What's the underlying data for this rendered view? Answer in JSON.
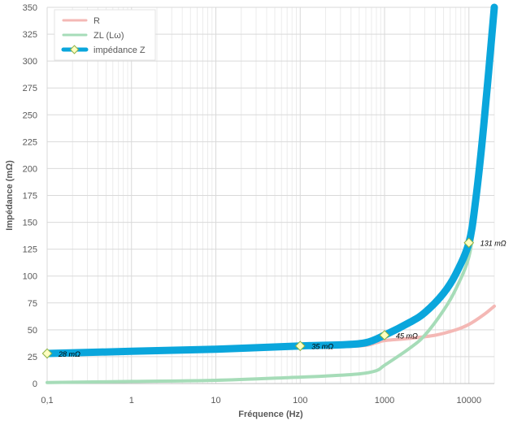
{
  "chart_data": {
    "type": "line",
    "title": "",
    "xlabel": "Fréquence (Hz)",
    "ylabel": "Impédance (mΩ)",
    "x_scale": "log",
    "xlim": [
      0.1,
      20000
    ],
    "ylim": [
      0,
      350
    ],
    "x_ticks": [
      0.1,
      1,
      10,
      100,
      1000,
      10000
    ],
    "x_tick_labels": [
      "0,1",
      "1",
      "10",
      "100",
      "1000",
      "10000"
    ],
    "y_ticks": [
      0,
      25,
      50,
      75,
      100,
      125,
      150,
      175,
      200,
      225,
      250,
      275,
      300,
      325,
      350
    ],
    "y_tick_labels": [
      "0",
      "25",
      "50",
      "75",
      "100",
      "125",
      "150",
      "175",
      "200",
      "225",
      "250",
      "275",
      "300",
      "325",
      "350"
    ],
    "grid": true,
    "legend_position": "top-left",
    "series": [
      {
        "name": "R",
        "color": "#f4b8b5",
        "points": [
          [
            0.1,
            28
          ],
          [
            1,
            30
          ],
          [
            10,
            32
          ],
          [
            100,
            34
          ],
          [
            500,
            35
          ],
          [
            800,
            38
          ],
          [
            1000,
            40
          ],
          [
            2000,
            42
          ],
          [
            4000,
            45
          ],
          [
            7000,
            50
          ],
          [
            10000,
            55
          ],
          [
            15000,
            64
          ],
          [
            20000,
            72
          ]
        ]
      },
      {
        "name": "ZL (Lω)",
        "color": "#a6dcb8",
        "points": [
          [
            0.1,
            1
          ],
          [
            1,
            2
          ],
          [
            10,
            3
          ],
          [
            100,
            6
          ],
          [
            200,
            7
          ],
          [
            500,
            9
          ],
          [
            800,
            12
          ],
          [
            1000,
            17
          ],
          [
            2000,
            33
          ],
          [
            3000,
            45
          ],
          [
            5000,
            68
          ],
          [
            7000,
            88
          ],
          [
            10000,
            118
          ],
          [
            12000,
            160
          ],
          [
            15000,
            230
          ],
          [
            20000,
            345
          ]
        ]
      },
      {
        "name": "impédance Z",
        "color": "#0aa6dc",
        "points": [
          [
            0.1,
            28
          ],
          [
            1,
            30
          ],
          [
            10,
            32
          ],
          [
            100,
            35
          ],
          [
            300,
            36
          ],
          [
            600,
            38
          ],
          [
            1000,
            45
          ],
          [
            2000,
            57
          ],
          [
            3000,
            66
          ],
          [
            5000,
            84
          ],
          [
            7000,
            102
          ],
          [
            10000,
            131
          ],
          [
            12000,
            170
          ],
          [
            15000,
            240
          ],
          [
            20000,
            350
          ]
        ]
      }
    ],
    "data_labels": [
      {
        "x": 0.1,
        "y": 28,
        "text": "28 mΩ"
      },
      {
        "x": 100,
        "y": 35,
        "text": "35 mΩ"
      },
      {
        "x": 1000,
        "y": 45,
        "text": "45 mΩ"
      },
      {
        "x": 10000,
        "y": 131,
        "text": "131 mΩ"
      }
    ]
  }
}
